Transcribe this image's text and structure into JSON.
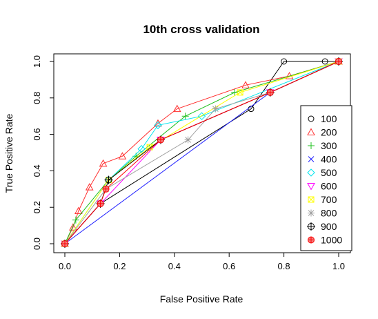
{
  "chart_data": {
    "type": "line",
    "title": "10th cross validation",
    "xlabel": "False Positive Rate",
    "ylabel": "True Positive Rate",
    "xlim": [
      0,
      1
    ],
    "ylim": [
      0,
      1
    ],
    "x_ticks": [
      "0.0",
      "0.2",
      "0.4",
      "0.6",
      "0.8",
      "1.0"
    ],
    "y_ticks": [
      "0.0",
      "0.2",
      "0.4",
      "0.6",
      "0.8",
      "1.0"
    ],
    "grid": false,
    "legend_position": "right",
    "series": [
      {
        "name": "100",
        "color": "#000000",
        "marker": "circle",
        "points": [
          [
            0,
            0
          ],
          [
            0.13,
            0.22
          ],
          [
            0.68,
            0.74
          ],
          [
            0.8,
            1.0
          ],
          [
            0.95,
            1.0
          ],
          [
            1.0,
            1.0
          ]
        ]
      },
      {
        "name": "200",
        "color": "#ff3030",
        "marker": "triangle-up",
        "points": [
          [
            0,
            0
          ],
          [
            0.03,
            0.09
          ],
          [
            0.05,
            0.18
          ],
          [
            0.09,
            0.31
          ],
          [
            0.14,
            0.44
          ],
          [
            0.21,
            0.48
          ],
          [
            0.34,
            0.66
          ],
          [
            0.41,
            0.74
          ],
          [
            0.66,
            0.87
          ],
          [
            0.82,
            0.92
          ],
          [
            1.0,
            1.0
          ]
        ]
      },
      {
        "name": "300",
        "color": "#20c020",
        "marker": "plus",
        "points": [
          [
            0,
            0
          ],
          [
            0.04,
            0.13
          ],
          [
            0.16,
            0.35
          ],
          [
            0.26,
            0.48
          ],
          [
            0.44,
            0.7
          ],
          [
            0.62,
            0.83
          ],
          [
            1.0,
            1.0
          ]
        ]
      },
      {
        "name": "400",
        "color": "#2020ff",
        "marker": "x",
        "points": [
          [
            0,
            0
          ],
          [
            0.75,
            0.83
          ],
          [
            1.0,
            1.0
          ]
        ]
      },
      {
        "name": "500",
        "color": "#00e5ee",
        "marker": "diamond",
        "points": [
          [
            0,
            0
          ],
          [
            0.16,
            0.35
          ],
          [
            0.28,
            0.52
          ],
          [
            0.34,
            0.65
          ],
          [
            0.5,
            0.7
          ],
          [
            1.0,
            1.0
          ]
        ]
      },
      {
        "name": "600",
        "color": "#ff00ff",
        "marker": "triangle-down",
        "points": [
          [
            0,
            0
          ],
          [
            0.13,
            0.22
          ],
          [
            0.35,
            0.57
          ],
          [
            0.75,
            0.83
          ],
          [
            1.0,
            1.0
          ]
        ]
      },
      {
        "name": "700",
        "color": "#ffff00",
        "marker": "square-x",
        "points": [
          [
            0,
            0
          ],
          [
            0.16,
            0.35
          ],
          [
            0.31,
            0.53
          ],
          [
            0.64,
            0.83
          ],
          [
            1.0,
            1.0
          ]
        ]
      },
      {
        "name": "800",
        "color": "#a0a0a0",
        "marker": "asterisk",
        "points": [
          [
            0,
            0
          ],
          [
            0.15,
            0.3
          ],
          [
            0.45,
            0.57
          ],
          [
            0.55,
            0.74
          ],
          [
            0.75,
            0.83
          ],
          [
            1.0,
            1.0
          ]
        ]
      },
      {
        "name": "900",
        "color": "#000000",
        "marker": "circle-plus",
        "points": [
          [
            0,
            0
          ],
          [
            0.13,
            0.22
          ],
          [
            0.16,
            0.35
          ],
          [
            0.35,
            0.57
          ],
          [
            0.75,
            0.83
          ],
          [
            1.0,
            1.0
          ]
        ]
      },
      {
        "name": "1000",
        "color": "#ff0000",
        "marker": "circle-plus-red",
        "points": [
          [
            0,
            0
          ],
          [
            0.13,
            0.22
          ],
          [
            0.15,
            0.3
          ],
          [
            0.35,
            0.57
          ],
          [
            0.75,
            0.83
          ],
          [
            1.0,
            1.0
          ]
        ]
      }
    ]
  }
}
